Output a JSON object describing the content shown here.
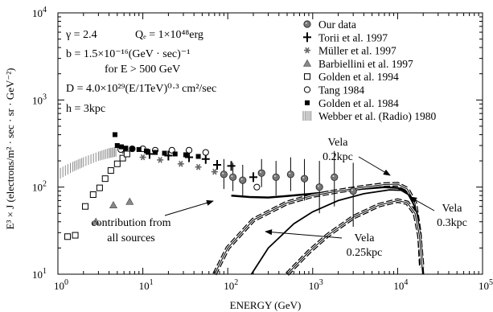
{
  "chart_data": {
    "type": "scatter",
    "xlabel": "ENERGY  (GeV)",
    "ylabel": "E³ × J  (electrons/m² · sec · sr · GeV⁻²)",
    "xscale": "log",
    "yscale": "log",
    "xlim": [
      1,
      100000
    ],
    "ylim": [
      10,
      10000
    ],
    "x_ticks": [
      {
        "value": 1,
        "base": "10",
        "exp": "0"
      },
      {
        "value": 10,
        "base": "10",
        "exp": "1"
      },
      {
        "value": 100,
        "base": "10",
        "exp": "2"
      },
      {
        "value": 1000,
        "base": "10",
        "exp": "3"
      },
      {
        "value": 10000,
        "base": "10",
        "exp": "4"
      },
      {
        "value": 100000,
        "base": "10",
        "exp": "5"
      }
    ],
    "y_ticks": [
      {
        "value": 10,
        "base": "10",
        "exp": "1"
      },
      {
        "value": 100,
        "base": "10",
        "exp": "2"
      },
      {
        "value": 1000,
        "base": "10",
        "exp": "3"
      },
      {
        "value": 10000,
        "base": "10",
        "exp": "4"
      }
    ],
    "grid": false,
    "legend_position": "top-right",
    "parameters": [
      {
        "text": "γ = 2.4"
      },
      {
        "text": "Qₑ = 1×10⁴⁸erg"
      },
      {
        "text": "b = 1.5×10⁻¹⁶(GeV · sec)⁻¹"
      },
      {
        "text": "for E  > 500 GeV"
      },
      {
        "text": "D = 4.0×10²⁹(E/1TeV)⁰·³ cm²/sec"
      },
      {
        "text": "h = 3kpc"
      }
    ],
    "series": [
      {
        "name": "Our data",
        "marker": "dotted-circle",
        "points": [
          {
            "x": 90,
            "y": 140,
            "ylo": 95,
            "yhi": 210
          },
          {
            "x": 115,
            "y": 130,
            "ylo": 90,
            "yhi": 190
          },
          {
            "x": 150,
            "y": 120,
            "ylo": 80,
            "yhi": 180
          },
          {
            "x": 250,
            "y": 145,
            "ylo": 100,
            "yhi": 210
          },
          {
            "x": 370,
            "y": 130,
            "ylo": 80,
            "yhi": 200
          },
          {
            "x": 550,
            "y": 140,
            "ylo": 90,
            "yhi": 220
          },
          {
            "x": 800,
            "y": 125,
            "ylo": 70,
            "yhi": 210
          },
          {
            "x": 1200,
            "y": 100,
            "ylo": 50,
            "yhi": 200
          },
          {
            "x": 1800,
            "y": 130,
            "ylo": 60,
            "yhi": 260
          },
          {
            "x": 3000,
            "y": 90,
            "ylo": 35,
            "yhi": 190
          }
        ]
      },
      {
        "name": "Torii et al. 1997",
        "marker": "cross",
        "points": [
          {
            "x": 12,
            "y": 240
          },
          {
            "x": 20,
            "y": 230
          },
          {
            "x": 35,
            "y": 220
          },
          {
            "x": 55,
            "y": 210
          },
          {
            "x": 75,
            "y": 180
          },
          {
            "x": 110,
            "y": 175
          },
          {
            "x": 200,
            "y": 130
          }
        ]
      },
      {
        "name": "Müller et al. 1997",
        "marker": "star",
        "points": [
          {
            "x": 6,
            "y": 260
          },
          {
            "x": 10,
            "y": 220
          },
          {
            "x": 16,
            "y": 205
          },
          {
            "x": 28,
            "y": 185
          },
          {
            "x": 45,
            "y": 170
          },
          {
            "x": 70,
            "y": 150
          }
        ]
      },
      {
        "name": "Barbiellini et al. 1997",
        "marker": "triangle",
        "points": [
          {
            "x": 2.8,
            "y": 40
          },
          {
            "x": 4.5,
            "y": 62
          },
          {
            "x": 7,
            "y": 68
          }
        ]
      },
      {
        "name": "Golden et al. 1994",
        "marker": "open-square",
        "points": [
          {
            "x": 1.3,
            "y": 27
          },
          {
            "x": 1.6,
            "y": 28
          },
          {
            "x": 2.1,
            "y": 60
          },
          {
            "x": 2.6,
            "y": 82
          },
          {
            "x": 3.1,
            "y": 98
          },
          {
            "x": 3.6,
            "y": 125
          },
          {
            "x": 4.2,
            "y": 155
          },
          {
            "x": 5,
            "y": 185
          },
          {
            "x": 5.8,
            "y": 215
          },
          {
            "x": 6.5,
            "y": 240
          }
        ]
      },
      {
        "name": "Tang 1984",
        "marker": "open-circle",
        "points": [
          {
            "x": 5.5,
            "y": 270
          },
          {
            "x": 7.5,
            "y": 275
          },
          {
            "x": 10,
            "y": 275
          },
          {
            "x": 14,
            "y": 265
          },
          {
            "x": 22,
            "y": 265
          },
          {
            "x": 35,
            "y": 265
          },
          {
            "x": 55,
            "y": 250
          },
          {
            "x": 220,
            "y": 100
          }
        ]
      },
      {
        "name": "Golden et al. 1984",
        "marker": "filled-square",
        "points": [
          {
            "x": 4.7,
            "y": 400
          },
          {
            "x": 5.0,
            "y": 300
          },
          {
            "x": 5.6,
            "y": 290
          },
          {
            "x": 6.3,
            "y": 280
          },
          {
            "x": 7.5,
            "y": 275
          },
          {
            "x": 9,
            "y": 270
          },
          {
            "x": 11,
            "y": 260
          },
          {
            "x": 14,
            "y": 250
          },
          {
            "x": 18,
            "y": 245
          },
          {
            "x": 24,
            "y": 240
          },
          {
            "x": 32,
            "y": 235
          },
          {
            "x": 45,
            "y": 225
          }
        ]
      },
      {
        "name": "Webber et al. (Radio) 1980",
        "marker": "hatched-band",
        "band": [
          {
            "x": 1,
            "lo": 120,
            "hi": 160
          },
          {
            "x": 1.5,
            "lo": 150,
            "hi": 195
          },
          {
            "x": 2.0,
            "lo": 170,
            "hi": 220
          },
          {
            "x": 3.0,
            "lo": 200,
            "hi": 255
          },
          {
            "x": 4.0,
            "lo": 215,
            "hi": 280
          },
          {
            "x": 5.0,
            "lo": 225,
            "hi": 290
          }
        ]
      }
    ],
    "curves": [
      {
        "label": "contribution from all sources",
        "style": "solid-thick",
        "points": [
          {
            "x": 110,
            "y": 80
          },
          {
            "x": 180,
            "y": 77
          },
          {
            "x": 300,
            "y": 76
          },
          {
            "x": 500,
            "y": 79
          },
          {
            "x": 1000,
            "y": 84
          },
          {
            "x": 2000,
            "y": 90
          },
          {
            "x": 4000,
            "y": 96
          },
          {
            "x": 7000,
            "y": 100
          },
          {
            "x": 10000,
            "y": 98
          },
          {
            "x": 13000,
            "y": 88
          },
          {
            "x": 16000,
            "y": 60
          },
          {
            "x": 18500,
            "y": 25
          },
          {
            "x": 20000,
            "y": 10
          }
        ]
      },
      {
        "label": "Vela 0.2kpc",
        "style": "solid-with-dashed-outline",
        "points": [
          {
            "x": 70,
            "y": 10
          },
          {
            "x": 100,
            "y": 20
          },
          {
            "x": 200,
            "y": 42
          },
          {
            "x": 500,
            "y": 66
          },
          {
            "x": 1000,
            "y": 80
          },
          {
            "x": 2000,
            "y": 90
          },
          {
            "x": 4000,
            "y": 100
          },
          {
            "x": 7000,
            "y": 107
          },
          {
            "x": 10000,
            "y": 108
          },
          {
            "x": 13000,
            "y": 95
          },
          {
            "x": 16000,
            "y": 65
          },
          {
            "x": 18000,
            "y": 30
          },
          {
            "x": 19000,
            "y": 12
          }
        ]
      },
      {
        "label": "Vela 0.25kpc",
        "style": "solid",
        "points": [
          {
            "x": 190,
            "y": 10
          },
          {
            "x": 300,
            "y": 20
          },
          {
            "x": 600,
            "y": 38
          },
          {
            "x": 1000,
            "y": 52
          },
          {
            "x": 2000,
            "y": 70
          },
          {
            "x": 4000,
            "y": 84
          },
          {
            "x": 8000,
            "y": 93
          },
          {
            "x": 11000,
            "y": 92
          },
          {
            "x": 14000,
            "y": 80
          },
          {
            "x": 17000,
            "y": 50
          },
          {
            "x": 19000,
            "y": 22
          },
          {
            "x": 20000,
            "y": 10
          }
        ]
      },
      {
        "label": "Vela 0.3kpc",
        "style": "solid-with-dashed-outline",
        "points": [
          {
            "x": 500,
            "y": 10
          },
          {
            "x": 900,
            "y": 18
          },
          {
            "x": 1500,
            "y": 28
          },
          {
            "x": 3000,
            "y": 45
          },
          {
            "x": 6000,
            "y": 62
          },
          {
            "x": 10000,
            "y": 70
          },
          {
            "x": 13000,
            "y": 66
          },
          {
            "x": 16000,
            "y": 50
          },
          {
            "x": 18000,
            "y": 28
          },
          {
            "x": 19500,
            "y": 12
          }
        ]
      }
    ],
    "annotations": {
      "vela02_l1": "Vela",
      "vela02_l2": "0.2kpc",
      "vela025_l1": "Vela",
      "vela025_l2": "0.25kpc",
      "vela03_l1": "Vela",
      "vela03_l2": "0.3kpc",
      "all_l1": "contribution from",
      "all_l2": "all sources"
    }
  }
}
